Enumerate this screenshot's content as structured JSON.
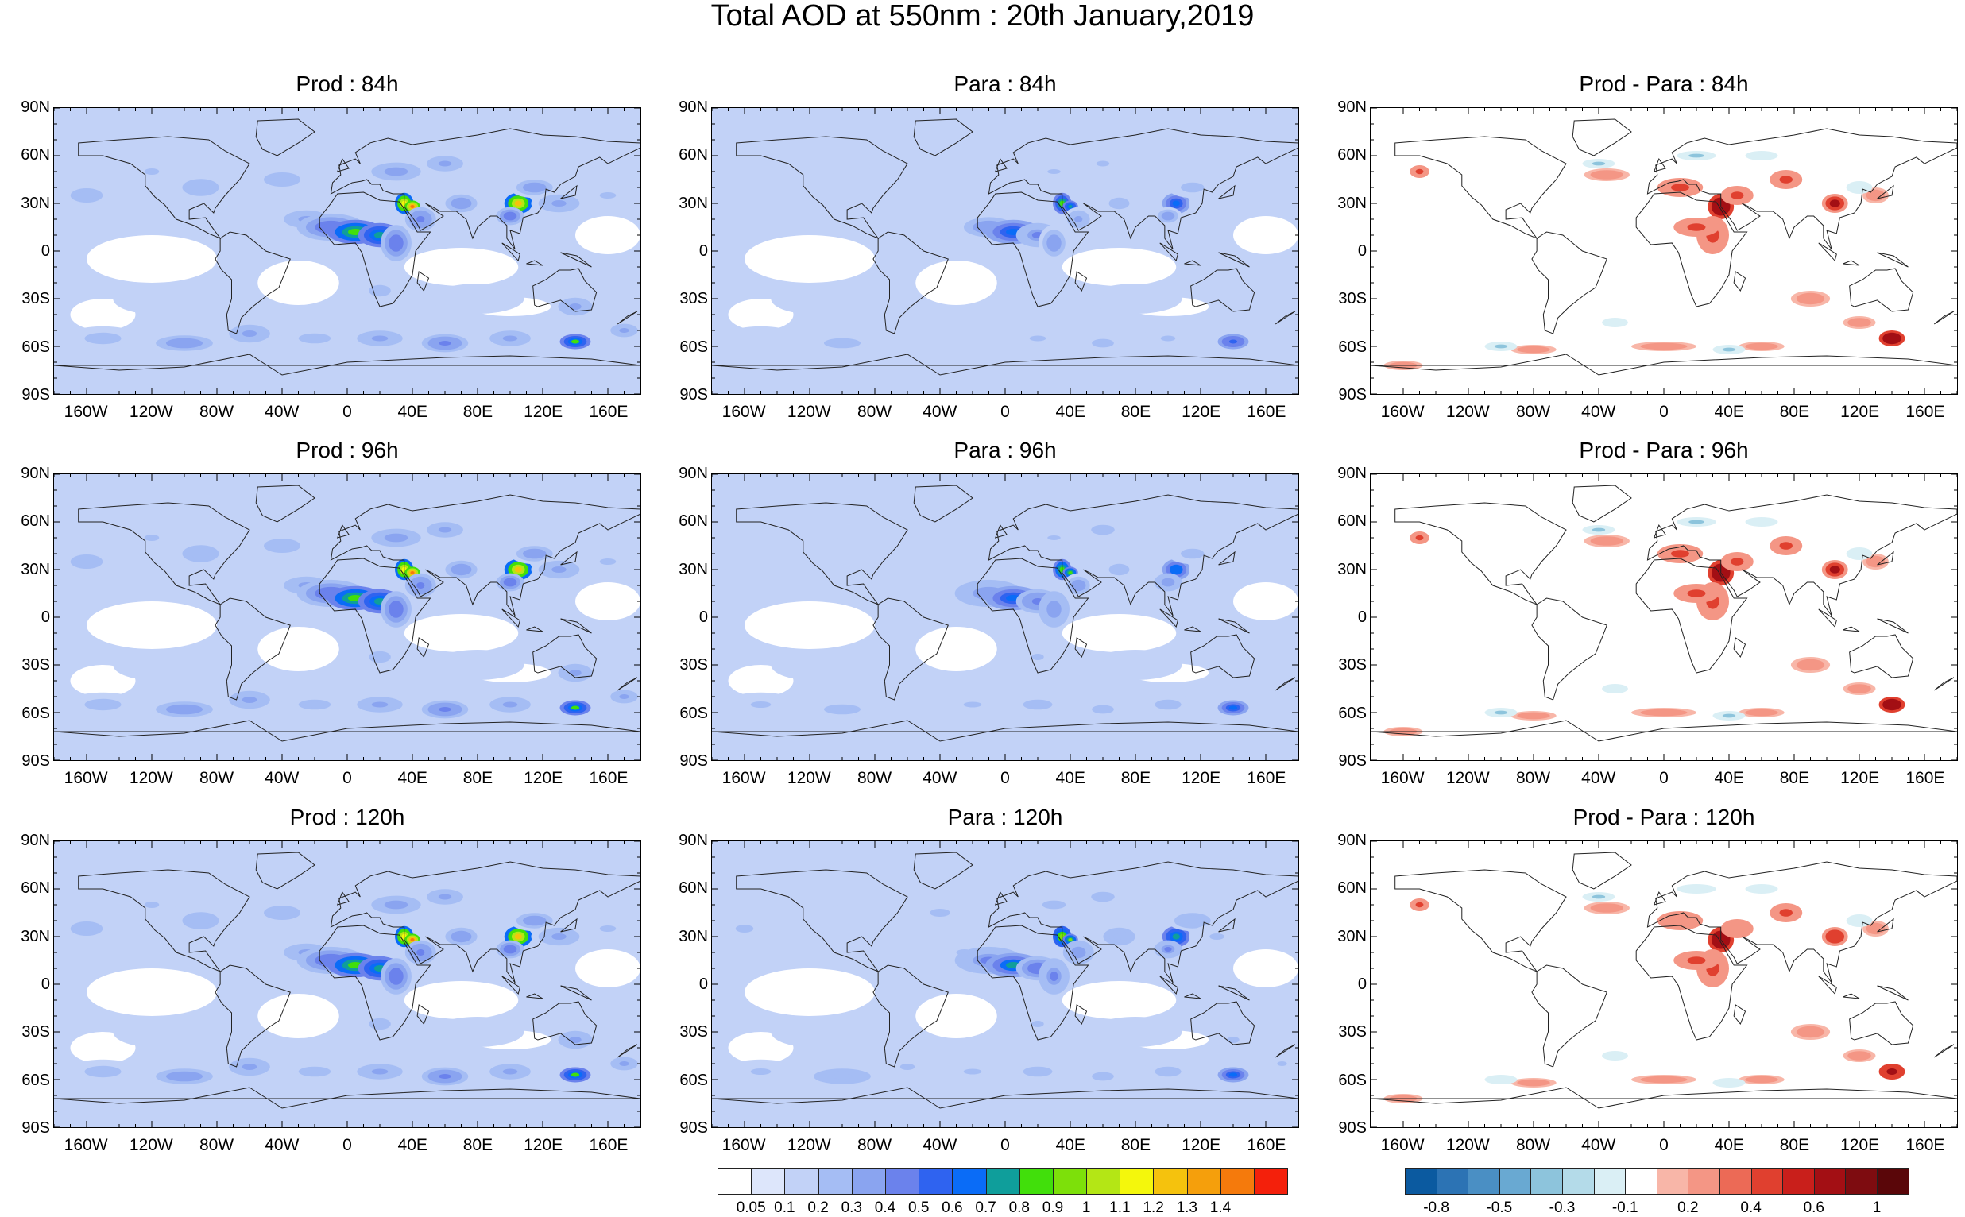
{
  "title": "Total AOD at 550nm : 20th January,2019",
  "panels": [
    {
      "title": "Prod : 84h",
      "kind": "aod",
      "level": 1.0
    },
    {
      "title": "Para : 84h",
      "kind": "aod",
      "level": 0.65
    },
    {
      "title": "Prod - Para : 84h",
      "kind": "diff",
      "level": 1.0
    },
    {
      "title": "Prod : 96h",
      "kind": "aod",
      "level": 1.0
    },
    {
      "title": "Para : 96h",
      "kind": "aod",
      "level": 0.7
    },
    {
      "title": "Prod - Para : 96h",
      "kind": "diff",
      "level": 1.0
    },
    {
      "title": "Prod : 120h",
      "kind": "aod",
      "level": 1.0
    },
    {
      "title": "Para : 120h",
      "kind": "aod",
      "level": 0.75
    },
    {
      "title": "Prod - Para : 120h",
      "kind": "diff",
      "level": 0.9
    }
  ],
  "lat_labels": [
    "90N",
    "60N",
    "30N",
    "0",
    "30S",
    "60S",
    "90S"
  ],
  "lon_labels": [
    "160W",
    "120W",
    "80W",
    "40W",
    "0",
    "40E",
    "80E",
    "120E",
    "160E"
  ],
  "aod_colorbar": {
    "colors": [
      "#ffffff",
      "#dde6fb",
      "#c2d2f7",
      "#a5bdf4",
      "#8aa4f0",
      "#6b82ec",
      "#2f63f0",
      "#0a6cf7",
      "#0f9e9b",
      "#41df0b",
      "#7de00a",
      "#b4e615",
      "#f4f70c",
      "#f5c20d",
      "#f59f0c",
      "#f57a0c",
      "#f4200b"
    ],
    "labels": [
      "0.05",
      "0.1",
      "0.2",
      "0.3",
      "0.4",
      "0.5",
      "0.6",
      "0.7",
      "0.8",
      "0.9",
      "1",
      "1.1",
      "1.2",
      "1.3",
      "1.4"
    ]
  },
  "diff_colorbar": {
    "colors": [
      "#0b5aa0",
      "#2c73b4",
      "#4a8fc4",
      "#69a9d2",
      "#8dc4dc",
      "#b4dbe9",
      "#daeff5",
      "#ffffff",
      "#f8b6a8",
      "#f49685",
      "#ec6a56",
      "#e0402f",
      "#c91f1b",
      "#a30f14",
      "#7e0c10",
      "#5a0609"
    ],
    "labels": [
      "-0.8",
      "-0.5",
      "-0.3",
      "-0.1",
      "0.2",
      "0.4",
      "0.6",
      "1"
    ]
  }
}
